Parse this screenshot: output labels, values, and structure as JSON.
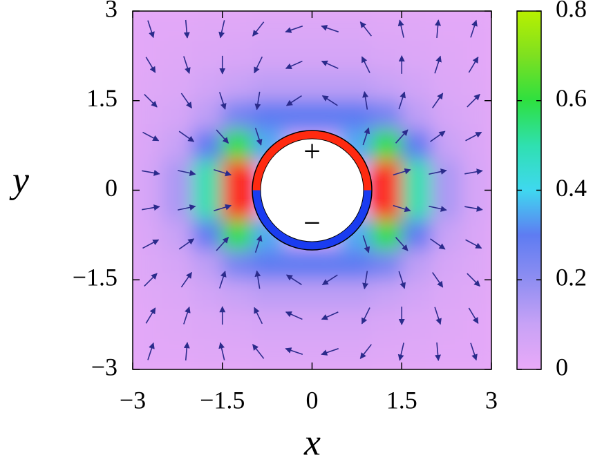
{
  "chart_data": {
    "type": "heatmap",
    "xlabel": "x",
    "ylabel": "y",
    "xlim": [
      -3,
      3
    ],
    "ylim": [
      -3,
      3
    ],
    "xticks": [
      {
        "value": -3,
        "label": "−3"
      },
      {
        "value": -1.5,
        "label": "−1.5"
      },
      0,
      1.5,
      3
    ],
    "yticks": [
      {
        "value": -3,
        "label": "−3"
      },
      {
        "value": -1.5,
        "label": "−1.5"
      },
      0,
      1.5,
      3
    ],
    "clim": [
      0,
      0.8
    ],
    "cticks": [
      0,
      0.2,
      0.4,
      0.6,
      0.8
    ],
    "colormap": [
      "#e9aaf8",
      "#c8a2f6",
      "#8f8ef2",
      "#5e7cf2",
      "#3fd8f0",
      "#2fe0b0",
      "#2ee040",
      "#7ee020",
      "#b8f000"
    ],
    "over_color": "#ff1a0a",
    "heatmap": {
      "x": [
        -2.75,
        -2.25,
        -1.75,
        -1.25,
        -0.75,
        -0.25,
        0.25,
        0.75,
        1.25,
        1.75,
        2.25,
        2.75
      ],
      "y": [
        2.75,
        2.25,
        1.75,
        1.25,
        0.75,
        0.25,
        -0.25,
        -0.75,
        -1.25,
        -1.75,
        -2.25,
        -2.75
      ],
      "values": [
        [
          0.02,
          0.02,
          0.03,
          0.03,
          0.04,
          0.04,
          0.04,
          0.04,
          0.03,
          0.03,
          0.02,
          0.02
        ],
        [
          0.02,
          0.03,
          0.04,
          0.05,
          0.06,
          0.06,
          0.06,
          0.06,
          0.05,
          0.04,
          0.03,
          0.02
        ],
        [
          0.03,
          0.04,
          0.07,
          0.1,
          0.12,
          0.12,
          0.12,
          0.12,
          0.1,
          0.07,
          0.04,
          0.03
        ],
        [
          0.04,
          0.06,
          0.12,
          0.25,
          0.3,
          0.3,
          0.3,
          0.3,
          0.25,
          0.12,
          0.06,
          0.04
        ],
        [
          0.05,
          0.1,
          0.3,
          0.6,
          0.35,
          null,
          null,
          0.35,
          0.6,
          0.3,
          0.1,
          0.05
        ],
        [
          0.06,
          0.15,
          0.5,
          1.0,
          null,
          null,
          null,
          null,
          1.0,
          0.5,
          0.15,
          0.06
        ],
        [
          0.06,
          0.15,
          0.5,
          1.0,
          null,
          null,
          null,
          null,
          1.0,
          0.5,
          0.15,
          0.06
        ],
        [
          0.05,
          0.1,
          0.3,
          0.6,
          0.35,
          null,
          null,
          0.35,
          0.6,
          0.3,
          0.1,
          0.05
        ],
        [
          0.04,
          0.06,
          0.12,
          0.25,
          0.3,
          0.3,
          0.3,
          0.3,
          0.25,
          0.12,
          0.06,
          0.04
        ],
        [
          0.03,
          0.04,
          0.07,
          0.1,
          0.12,
          0.12,
          0.12,
          0.12,
          0.1,
          0.07,
          0.04,
          0.03
        ],
        [
          0.02,
          0.03,
          0.04,
          0.05,
          0.06,
          0.06,
          0.06,
          0.06,
          0.05,
          0.04,
          0.03,
          0.02
        ],
        [
          0.02,
          0.02,
          0.03,
          0.03,
          0.04,
          0.04,
          0.04,
          0.04,
          0.03,
          0.03,
          0.02,
          0.02
        ]
      ]
    },
    "quiver": {
      "color": "#2b2b8c",
      "x": [
        -2.7,
        -2.1,
        -1.5,
        -0.9,
        -0.3,
        0.3,
        0.9,
        1.5,
        2.1,
        2.7
      ],
      "y": [
        2.7,
        2.1,
        1.5,
        0.9,
        0.3,
        -0.3,
        -0.9,
        -1.5,
        -2.1,
        -2.7
      ],
      "angle": [
        [
          -72,
          -85,
          -103,
          -128,
          -161,
          161,
          128,
          103,
          85,
          72
        ],
        [
          -59,
          -72,
          -90,
          -116,
          -156,
          156,
          116,
          90,
          72,
          59
        ],
        [
          -45,
          -55,
          -72,
          -99,
          -147,
          147,
          99,
          72,
          55,
          45
        ],
        [
          -28,
          -35,
          -48,
          -72,
          null,
          null,
          72,
          48,
          35,
          28
        ],
        [
          -10,
          -12,
          -17,
          null,
          null,
          null,
          null,
          17,
          12,
          10
        ],
        [
          10,
          12,
          17,
          null,
          null,
          null,
          null,
          -17,
          -12,
          -10
        ],
        [
          28,
          35,
          48,
          72,
          null,
          null,
          -72,
          -48,
          -35,
          -28
        ],
        [
          45,
          55,
          72,
          99,
          147,
          -147,
          -99,
          -72,
          -55,
          -45
        ],
        [
          59,
          72,
          90,
          116,
          156,
          -156,
          -116,
          -90,
          -72,
          -59
        ],
        [
          72,
          85,
          103,
          128,
          161,
          -161,
          -128,
          -103,
          -85,
          -72
        ]
      ]
    },
    "circle": {
      "radius": 1,
      "top_color": "#ff2a10",
      "bottom_color": "#1a3cf0",
      "top_label": "+",
      "bottom_label": "−"
    }
  }
}
